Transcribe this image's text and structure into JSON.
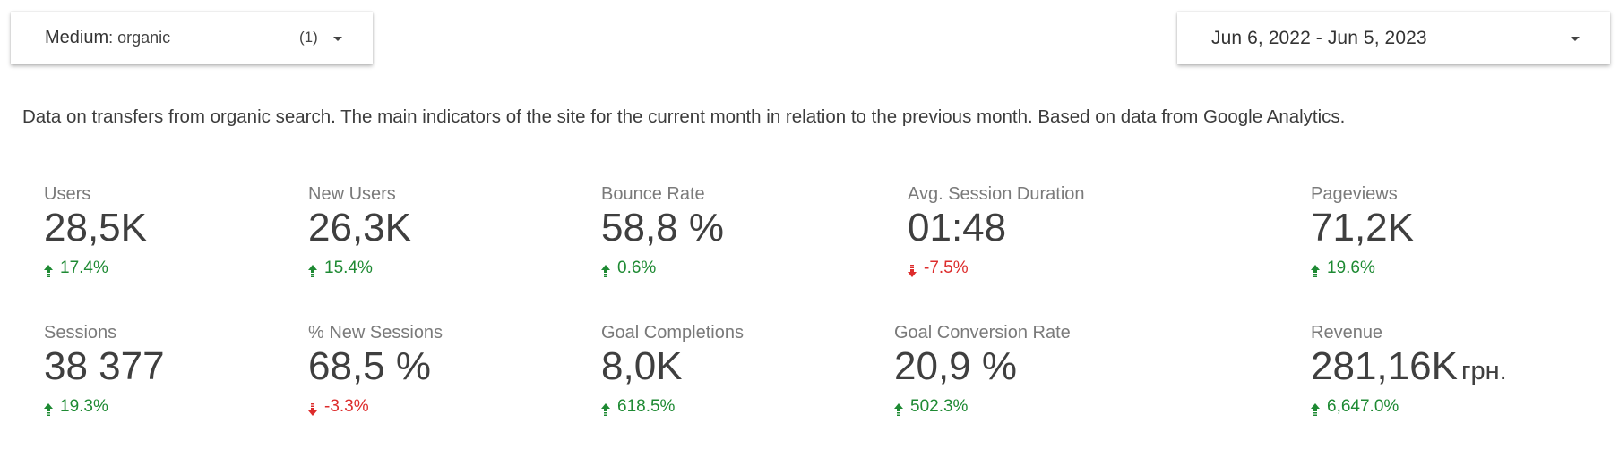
{
  "filter": {
    "label": "Medium",
    "value": ": organic",
    "count": "(1)"
  },
  "date_range": {
    "label": "Jun 6, 2022 - Jun 5, 2023"
  },
  "description": "Data on transfers from organic search. The main indicators of the site for the current month in relation to the previous month. Based on data from Google Analytics.",
  "colors": {
    "up": "#1e8a33",
    "down": "#dd2c2c"
  },
  "metrics": [
    {
      "label": "Users",
      "value": "28,5K",
      "unit": "",
      "change": "17.4%",
      "direction": "up"
    },
    {
      "label": "New Users",
      "value": "26,3K",
      "unit": "",
      "change": "15.4%",
      "direction": "up"
    },
    {
      "label": "Bounce Rate",
      "value": "58,8 %",
      "unit": "",
      "change": "0.6%",
      "direction": "up"
    },
    {
      "label": "Avg. Session Duration",
      "value": "01:48",
      "unit": "",
      "change": "-7.5%",
      "direction": "down"
    },
    {
      "label": "Pageviews",
      "value": "71,2K",
      "unit": "",
      "change": "19.6%",
      "direction": "up"
    },
    {
      "label": "Sessions",
      "value": "38 377",
      "unit": "",
      "change": "19.3%",
      "direction": "up"
    },
    {
      "label": "% New Sessions",
      "value": "68,5 %",
      "unit": "",
      "change": "-3.3%",
      "direction": "down"
    },
    {
      "label": "Goal Completions",
      "value": "8,0K",
      "unit": "",
      "change": "618.5%",
      "direction": "up"
    },
    {
      "label": "Goal Conversion Rate",
      "value": "20,9 %",
      "unit": "",
      "change": "502.3%",
      "direction": "up"
    },
    {
      "label": "Revenue",
      "value": "281,16K",
      "unit": "грн.",
      "change": "6,647.0%",
      "direction": "up"
    }
  ]
}
